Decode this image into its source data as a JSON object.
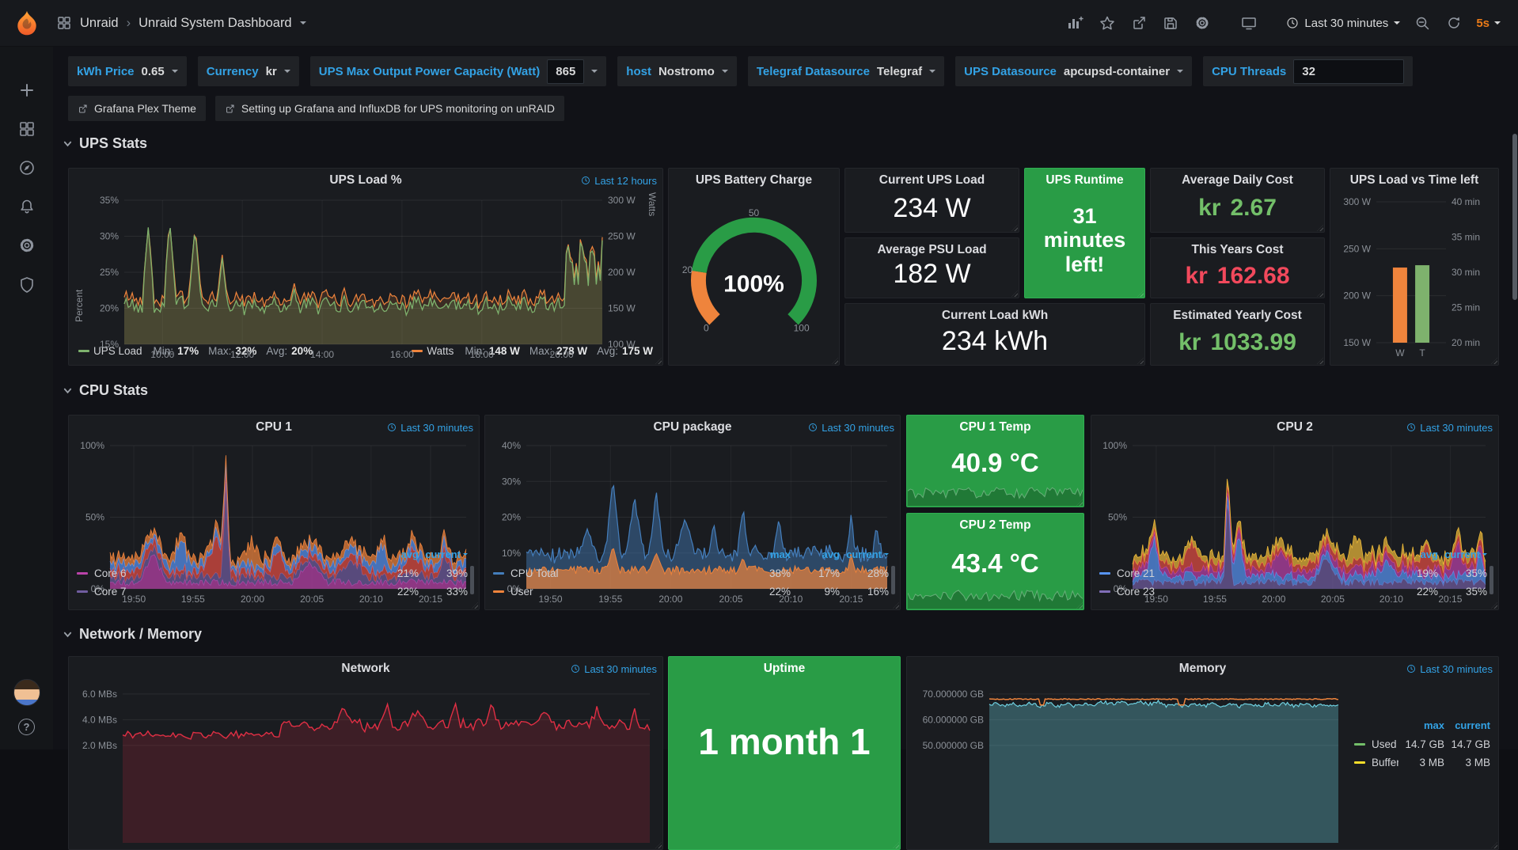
{
  "navbar": {
    "breadcrumb_root": "Unraid",
    "breadcrumb_sep": "›",
    "breadcrumb_current": "Unraid System Dashboard",
    "time_range": "Last 30 minutes",
    "refresh_interval": "5s"
  },
  "variables": [
    {
      "label": "kWh Price",
      "value": "0.65",
      "type": "dropdown"
    },
    {
      "label": "Currency",
      "value": "kr",
      "type": "dropdown"
    },
    {
      "label": "UPS Max Output Power Capacity (Watt)",
      "value": "865",
      "type": "input"
    },
    {
      "label": "host",
      "value": "Nostromo",
      "type": "dropdown"
    },
    {
      "label": "Telegraf Datasource",
      "value": "Telegraf",
      "type": "dropdown"
    },
    {
      "label": "UPS Datasource",
      "value": "apcupsd-container",
      "type": "dropdown"
    },
    {
      "label": "CPU Threads",
      "value": "32",
      "type": "input"
    }
  ],
  "links": [
    {
      "label": "Grafana Plex Theme"
    },
    {
      "label": "Setting up Grafana and InfluxDB for UPS monitoring on unRAID"
    }
  ],
  "sections": {
    "ups": "UPS Stats",
    "cpu": "CPU Stats",
    "netmem": "Network / Memory"
  },
  "panels": {
    "ups_load": {
      "title": "UPS Load %",
      "time_info": "Last 12 hours",
      "chart_data": {
        "type": "line",
        "y_left": {
          "label": "Percent",
          "ticks": [
            "35%",
            "30%",
            "25%",
            "20%",
            "15%"
          ]
        },
        "y_right": {
          "label": "Watts",
          "ticks": [
            "300 W",
            "250 W",
            "200 W",
            "150 W",
            "100 W"
          ]
        },
        "x_ticks": [
          "10:00",
          "12:00",
          "14:00",
          "16:00",
          "18:00",
          "20:00"
        ],
        "series": [
          {
            "name": "UPS Load",
            "color": "#7eb26d",
            "stats": [
              [
                "Min:",
                "17%"
              ],
              [
                "Max:",
                "32%"
              ],
              [
                "Avg:",
                "20%"
              ]
            ]
          },
          {
            "name": "Watts",
            "color": "#ef843c",
            "stats": [
              [
                "Min:",
                "148 W"
              ],
              [
                "Max:",
                "278 W"
              ],
              [
                "Avg:",
                "175 W"
              ]
            ]
          }
        ]
      }
    },
    "battery": {
      "title": "UPS Battery Charge",
      "value": "100%",
      "chart_data": {
        "type": "gauge",
        "value": 100,
        "min": 0,
        "max": 100,
        "scale_labels": [
          "0",
          "20",
          "50",
          "100"
        ],
        "threshold_split": 20,
        "threshold_colors": [
          "#ef843c",
          "#299c46"
        ]
      }
    },
    "current_ups_load": {
      "title": "Current UPS Load",
      "value": "234 W"
    },
    "ups_runtime": {
      "title": "UPS Runtime",
      "value": "31 minutes left!"
    },
    "avg_daily_cost": {
      "title": "Average Daily Cost",
      "prefix": "kr",
      "amount": "2.67"
    },
    "average_psu_load": {
      "title": "Average PSU Load",
      "value": "182 W"
    },
    "this_years_cost": {
      "title": "This Years Cost",
      "prefix": "kr",
      "amount": "162.68"
    },
    "current_load_kwh": {
      "title": "Current Load kWh",
      "value": "234 kWh"
    },
    "est_yearly_cost": {
      "title": "Estimated Yearly Cost",
      "prefix": "kr",
      "amount": "1033.99"
    },
    "ups_bars": {
      "title": "UPS Load vs Time left",
      "chart_data": {
        "type": "bar",
        "y_left": {
          "ticks": [
            "300 W",
            "250 W",
            "200 W",
            "150 W"
          ],
          "min": 150,
          "max": 300
        },
        "y_right": {
          "ticks": [
            "40 min",
            "35 min",
            "30 min",
            "25 min",
            "20 min"
          ],
          "min": 20,
          "max": 40
        },
        "bars": [
          {
            "label": "W",
            "color": "#ef843c",
            "axis": "left",
            "value": 230
          },
          {
            "label": "T",
            "color": "#7eb26d",
            "axis": "right",
            "value": 31
          }
        ]
      }
    },
    "cpu1": {
      "title": "CPU 1",
      "time_info": "Last 30 minutes",
      "chart_data": {
        "type": "stack",
        "y": {
          "ticks": [
            "100%",
            "50%",
            "0%"
          ]
        },
        "x_ticks": [
          "19:50",
          "19:55",
          "20:00",
          "20:05",
          "20:10",
          "20:15"
        ],
        "legend": {
          "cols": [
            "avg",
            "current"
          ],
          "sort_col": "current",
          "rows": [
            {
              "name": "Core 6",
              "color": "#ba43a9",
              "values": [
                "21%",
                "39%"
              ]
            },
            {
              "name": "Core 7",
              "color": "#705da0",
              "values": [
                "22%",
                "33%"
              ]
            }
          ]
        }
      }
    },
    "cpu_package": {
      "title": "CPU package",
      "time_info": "Last 30 minutes",
      "chart_data": {
        "type": "area",
        "y": {
          "ticks": [
            "40%",
            "30%",
            "20%",
            "10%",
            "0%"
          ]
        },
        "x_ticks": [
          "19:50",
          "19:55",
          "20:00",
          "20:05",
          "20:10",
          "20:15"
        ],
        "legend": {
          "cols": [
            "max",
            "avg",
            "current"
          ],
          "sort_col": "current",
          "rows": [
            {
              "name": "CPU Total",
              "color": "#447ebc",
              "values": [
                "38%",
                "17%",
                "28%"
              ]
            },
            {
              "name": "User",
              "color": "#ef843c",
              "values": [
                "22%",
                "9%",
                "16%"
              ]
            }
          ]
        }
      }
    },
    "cpu1_temp": {
      "title": "CPU 1 Temp",
      "value": "40.9 °C"
    },
    "cpu2_temp": {
      "title": "CPU 2 Temp",
      "value": "43.4 °C"
    },
    "cpu2": {
      "title": "CPU 2",
      "time_info": "Last 30 minutes",
      "chart_data": {
        "type": "stack",
        "y": {
          "ticks": [
            "100%",
            "50%",
            "0%"
          ]
        },
        "x_ticks": [
          "19:50",
          "19:55",
          "20:00",
          "20:05",
          "20:10",
          "20:15"
        ],
        "legend": {
          "cols": [
            "avg",
            "current"
          ],
          "sort_col": "current",
          "rows": [
            {
              "name": "Core 21",
              "color": "#5794f2",
              "values": [
                "19%",
                "35%"
              ]
            },
            {
              "name": "Core 23",
              "color": "#806eb7",
              "values": [
                "22%",
                "35%"
              ]
            }
          ]
        }
      }
    },
    "network": {
      "title": "Network",
      "time_info": "Last 30 minutes",
      "chart_data": {
        "type": "line",
        "y_left": {
          "ticks": [
            "6.0 MBs",
            "4.0 MBs",
            "2.0 MBs"
          ]
        },
        "series": [
          {
            "color": "#e02f44"
          }
        ]
      }
    },
    "uptime": {
      "title": "Uptime",
      "value": "1 month 1"
    },
    "memory": {
      "title": "Memory",
      "time_info": "Last 30 minutes",
      "chart_data": {
        "type": "line",
        "y_left": {
          "ticks": [
            "70.000000 GB",
            "60.000000 GB",
            "50.000000 GB"
          ]
        },
        "series": [
          {
            "color": "#6ed0e0"
          },
          {
            "color": "#ef843c"
          }
        ],
        "legend": {
          "cols": [
            "max",
            "current"
          ],
          "rows": [
            {
              "name": "Used",
              "color": "#73bf69",
              "values": [
                "14.7 GB",
                "14.7 GB"
              ]
            },
            {
              "name": "Buffered",
              "color": "#fade2a",
              "values": [
                "3 MB",
                "3 MB"
              ]
            }
          ]
        }
      }
    }
  }
}
